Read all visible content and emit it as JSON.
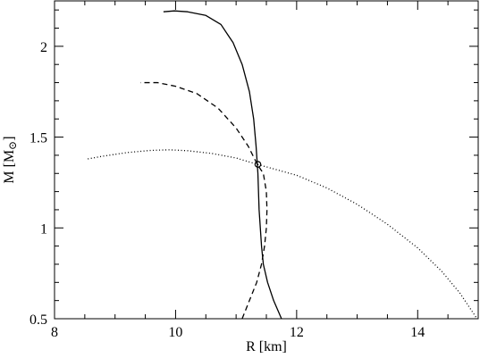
{
  "chart_data": {
    "type": "line",
    "xlabel": "R [km]",
    "ylabel_main": "M [M",
    "ylabel_sub": "⊙",
    "ylabel_close": "]",
    "xlim": [
      8,
      15
    ],
    "ylim": [
      0.5,
      2.25
    ],
    "x_ticks": [
      8,
      10,
      12,
      14
    ],
    "y_ticks": [
      0.5,
      1,
      1.5,
      2
    ],
    "x_tick_labels": [
      "8",
      "10",
      "12",
      "14"
    ],
    "y_tick_labels": [
      "0.5",
      "1",
      "1.5",
      "2"
    ],
    "x_minor_step": 0.5,
    "y_minor_step": 0.1,
    "grid": false,
    "legend": "none",
    "series": [
      {
        "style": "solid",
        "color": "#000000",
        "points": [
          [
            11.75,
            0.5
          ],
          [
            11.62,
            0.6
          ],
          [
            11.52,
            0.7
          ],
          [
            11.45,
            0.8
          ],
          [
            11.42,
            0.9
          ],
          [
            11.4,
            1.0
          ],
          [
            11.38,
            1.1
          ],
          [
            11.37,
            1.2
          ],
          [
            11.36,
            1.3
          ],
          [
            11.35,
            1.35
          ],
          [
            11.33,
            1.45
          ],
          [
            11.29,
            1.6
          ],
          [
            11.22,
            1.75
          ],
          [
            11.1,
            1.9
          ],
          [
            10.95,
            2.02
          ],
          [
            10.75,
            2.12
          ],
          [
            10.5,
            2.17
          ],
          [
            10.2,
            2.19
          ],
          [
            9.98,
            2.195
          ],
          [
            9.8,
            2.19
          ]
        ]
      },
      {
        "style": "dashed",
        "color": "#000000",
        "points": [
          [
            11.1,
            0.5
          ],
          [
            11.22,
            0.6
          ],
          [
            11.34,
            0.7
          ],
          [
            11.42,
            0.8
          ],
          [
            11.47,
            0.9
          ],
          [
            11.5,
            1.0
          ],
          [
            11.51,
            1.1
          ],
          [
            11.5,
            1.2
          ],
          [
            11.45,
            1.3
          ],
          [
            11.35,
            1.35
          ],
          [
            11.2,
            1.45
          ],
          [
            11.0,
            1.55
          ],
          [
            10.7,
            1.66
          ],
          [
            10.35,
            1.74
          ],
          [
            10.0,
            1.78
          ],
          [
            9.7,
            1.8
          ],
          [
            9.42,
            1.8
          ]
        ]
      },
      {
        "style": "dotted",
        "color": "#000000",
        "points": [
          [
            8.55,
            1.38
          ],
          [
            8.8,
            1.395
          ],
          [
            9.2,
            1.415
          ],
          [
            9.6,
            1.427
          ],
          [
            9.9,
            1.43
          ],
          [
            10.2,
            1.425
          ],
          [
            10.6,
            1.41
          ],
          [
            11.0,
            1.385
          ],
          [
            11.35,
            1.35
          ],
          [
            12.0,
            1.29
          ],
          [
            12.5,
            1.22
          ],
          [
            13.0,
            1.13
          ],
          [
            13.5,
            1.02
          ],
          [
            14.0,
            0.89
          ],
          [
            14.4,
            0.76
          ],
          [
            14.7,
            0.64
          ],
          [
            14.98,
            0.5
          ]
        ]
      }
    ],
    "marker": {
      "shape": "open-circle",
      "x": 11.36,
      "y": 1.35
    }
  }
}
